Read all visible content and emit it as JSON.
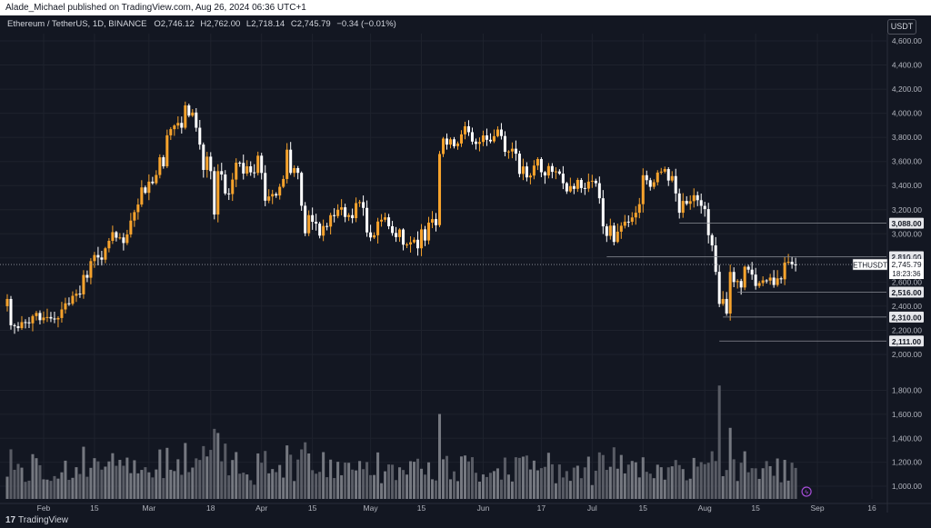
{
  "publisher_line": "Alade_Michael published on TradingView.com, Aug 26, 2024 06:36 UTC+1",
  "footer": {
    "logo": "17",
    "brand": "TradingView"
  },
  "symbol_line": {
    "symbol": "Ethereum / TetherUS, 1D, BINANCE",
    "open_label": "O",
    "open": "2,746.12",
    "high_label": "H",
    "high": "2,762.00",
    "low_label": "L",
    "low": "2,718.14",
    "close_label": "C",
    "close": "2,745.79",
    "change": "−0.34 (−0.01%)"
  },
  "currency": "USDT",
  "colors": {
    "up": "#f7a32c",
    "down": "#ffffff",
    "volume": "#6b6e78",
    "grid": "#1e222d",
    "axis_text": "#b2b5be",
    "price_line": "#9598a1",
    "background": "#131722"
  },
  "chart_data": {
    "type": "candlestick",
    "symbol": "ETHUSDT",
    "interval": "1D",
    "exchange": "BINANCE",
    "x_range": [
      "2024-01-22",
      "2024-09-20"
    ],
    "y_range": [
      2000,
      4600
    ],
    "x_ticks": [
      {
        "date": "2024-02-01",
        "label": "Feb"
      },
      {
        "date": "2024-02-15",
        "label": "15"
      },
      {
        "date": "2024-03-01",
        "label": "Mar"
      },
      {
        "date": "2024-03-18",
        "label": "18"
      },
      {
        "date": "2024-04-01",
        "label": "Apr"
      },
      {
        "date": "2024-04-15",
        "label": "15"
      },
      {
        "date": "2024-05-01",
        "label": "May"
      },
      {
        "date": "2024-05-15",
        "label": "15"
      },
      {
        "date": "2024-06-01",
        "label": "Jun"
      },
      {
        "date": "2024-06-17",
        "label": "17"
      },
      {
        "date": "2024-07-01",
        "label": "Jul"
      },
      {
        "date": "2024-07-15",
        "label": "15"
      },
      {
        "date": "2024-08-01",
        "label": "Aug"
      },
      {
        "date": "2024-08-15",
        "label": "15"
      },
      {
        "date": "2024-09-01",
        "label": "Sep"
      },
      {
        "date": "2024-09-16",
        "label": "16"
      }
    ],
    "price_ticks": [
      {
        "value": 2000,
        "label": "2,000.00"
      },
      {
        "value": 2200,
        "label": "2,200.00"
      },
      {
        "value": 2400,
        "label": "2,400.00"
      },
      {
        "value": 2600,
        "label": "2,600.00"
      },
      {
        "value": 2800,
        "label": "2,800.00"
      },
      {
        "value": 3000,
        "label": "3,000.00"
      },
      {
        "value": 3200,
        "label": "3,200.00"
      },
      {
        "value": 3400,
        "label": "3,400.00"
      },
      {
        "value": 3600,
        "label": "3,600.00"
      },
      {
        "value": 3800,
        "label": "3,800.00"
      },
      {
        "value": 4000,
        "label": "4,000.00"
      },
      {
        "value": 4200,
        "label": "4,200.00"
      },
      {
        "value": 4400,
        "label": "4,400.00"
      },
      {
        "value": 4600,
        "label": "4,600.00"
      }
    ],
    "volume_ticks": [
      {
        "value": 1000,
        "label": "1,000.00"
      },
      {
        "value": 1200,
        "label": "1,200.00"
      },
      {
        "value": 1400,
        "label": "1,400.00"
      },
      {
        "value": 1600,
        "label": "1,600.00"
      },
      {
        "value": 1800,
        "label": "1,800.00"
      }
    ],
    "levels": [
      {
        "price": 3088,
        "label": "3,088.00",
        "from": "2024-07-25"
      },
      {
        "price": 2810,
        "label": "2,810.00",
        "from": "2024-07-05"
      },
      {
        "price": 2516,
        "label": "2,516.00",
        "from": "2024-08-10"
      },
      {
        "price": 2310,
        "label": "2,310.00",
        "from": "2024-08-06"
      },
      {
        "price": 2111,
        "label": "2,111.00",
        "from": "2024-08-05"
      }
    ],
    "last_price": {
      "value": 2745.79,
      "symbol": "ETHUSDT",
      "price_label": "2,745.79",
      "countdown": "18:23:36"
    },
    "closes": [
      [
        "2024-01-22",
        2460
      ],
      [
        "2024-01-23",
        2242
      ],
      [
        "2024-01-24",
        2234
      ],
      [
        "2024-01-25",
        2218
      ],
      [
        "2024-01-26",
        2268
      ],
      [
        "2024-01-27",
        2266
      ],
      [
        "2024-01-28",
        2258
      ],
      [
        "2024-01-29",
        2318
      ],
      [
        "2024-01-30",
        2344
      ],
      [
        "2024-01-31",
        2284
      ],
      [
        "2024-02-01",
        2306
      ],
      [
        "2024-02-02",
        2310
      ],
      [
        "2024-02-03",
        2298
      ],
      [
        "2024-02-04",
        2290
      ],
      [
        "2024-02-05",
        2302
      ],
      [
        "2024-02-06",
        2373
      ],
      [
        "2024-02-07",
        2424
      ],
      [
        "2024-02-08",
        2420
      ],
      [
        "2024-02-09",
        2486
      ],
      [
        "2024-02-10",
        2504
      ],
      [
        "2024-02-11",
        2498
      ],
      [
        "2024-02-12",
        2659
      ],
      [
        "2024-02-13",
        2636
      ],
      [
        "2024-02-14",
        2774
      ],
      [
        "2024-02-15",
        2824
      ],
      [
        "2024-02-16",
        2804
      ],
      [
        "2024-02-17",
        2786
      ],
      [
        "2024-02-18",
        2880
      ],
      [
        "2024-02-19",
        2942
      ],
      [
        "2024-02-20",
        3014
      ],
      [
        "2024-02-21",
        2968
      ],
      [
        "2024-02-22",
        2970
      ],
      [
        "2024-02-23",
        2924
      ],
      [
        "2024-02-24",
        2995
      ],
      [
        "2024-02-25",
        3110
      ],
      [
        "2024-02-26",
        3180
      ],
      [
        "2024-02-27",
        3243
      ],
      [
        "2024-02-28",
        3385
      ],
      [
        "2024-02-29",
        3340
      ],
      [
        "2024-03-01",
        3433
      ],
      [
        "2024-03-02",
        3420
      ],
      [
        "2024-03-03",
        3488
      ],
      [
        "2024-03-04",
        3635
      ],
      [
        "2024-03-05",
        3560
      ],
      [
        "2024-03-06",
        3817
      ],
      [
        "2024-03-07",
        3868
      ],
      [
        "2024-03-08",
        3898
      ],
      [
        "2024-03-09",
        3920
      ],
      [
        "2024-03-10",
        3880
      ],
      [
        "2024-03-11",
        4065
      ],
      [
        "2024-03-12",
        3980
      ],
      [
        "2024-03-13",
        4006
      ],
      [
        "2024-03-14",
        3880
      ],
      [
        "2024-03-15",
        3740
      ],
      [
        "2024-03-16",
        3530
      ],
      [
        "2024-03-17",
        3640
      ],
      [
        "2024-03-18",
        3520
      ],
      [
        "2024-03-19",
        3160
      ],
      [
        "2024-03-20",
        3520
      ],
      [
        "2024-03-21",
        3492
      ],
      [
        "2024-03-22",
        3335
      ],
      [
        "2024-03-23",
        3330
      ],
      [
        "2024-03-24",
        3450
      ],
      [
        "2024-03-25",
        3590
      ],
      [
        "2024-03-26",
        3588
      ],
      [
        "2024-03-27",
        3500
      ],
      [
        "2024-03-28",
        3560
      ],
      [
        "2024-03-29",
        3510
      ],
      [
        "2024-03-30",
        3505
      ],
      [
        "2024-03-31",
        3648
      ],
      [
        "2024-04-01",
        3505
      ],
      [
        "2024-04-02",
        3275
      ],
      [
        "2024-04-03",
        3310
      ],
      [
        "2024-04-04",
        3330
      ],
      [
        "2024-04-05",
        3318
      ],
      [
        "2024-04-06",
        3390
      ],
      [
        "2024-04-07",
        3455
      ],
      [
        "2024-04-08",
        3698
      ],
      [
        "2024-04-09",
        3505
      ],
      [
        "2024-04-10",
        3545
      ],
      [
        "2024-04-11",
        3506
      ],
      [
        "2024-04-12",
        3233
      ],
      [
        "2024-04-13",
        3005
      ],
      [
        "2024-04-14",
        3155
      ],
      [
        "2024-04-15",
        3100
      ],
      [
        "2024-04-16",
        3085
      ],
      [
        "2024-04-17",
        2985
      ],
      [
        "2024-04-18",
        3065
      ],
      [
        "2024-04-19",
        3060
      ],
      [
        "2024-04-20",
        3155
      ],
      [
        "2024-04-21",
        3147
      ],
      [
        "2024-04-22",
        3200
      ],
      [
        "2024-04-23",
        3220
      ],
      [
        "2024-04-24",
        3140
      ],
      [
        "2024-04-25",
        3155
      ],
      [
        "2024-04-26",
        3130
      ],
      [
        "2024-04-27",
        3255
      ],
      [
        "2024-04-28",
        3263
      ],
      [
        "2024-04-29",
        3215
      ],
      [
        "2024-04-30",
        3012
      ],
      [
        "2024-05-01",
        2970
      ],
      [
        "2024-05-02",
        2988
      ],
      [
        "2024-05-03",
        3102
      ],
      [
        "2024-05-04",
        3117
      ],
      [
        "2024-05-05",
        3137
      ],
      [
        "2024-05-06",
        3063
      ],
      [
        "2024-05-07",
        3007
      ],
      [
        "2024-05-08",
        2973
      ],
      [
        "2024-05-09",
        3036
      ],
      [
        "2024-05-10",
        2910
      ],
      [
        "2024-05-11",
        2912
      ],
      [
        "2024-05-12",
        2930
      ],
      [
        "2024-05-13",
        2951
      ],
      [
        "2024-05-14",
        2880
      ],
      [
        "2024-05-15",
        3037
      ],
      [
        "2024-05-16",
        2945
      ],
      [
        "2024-05-17",
        3093
      ],
      [
        "2024-05-18",
        3122
      ],
      [
        "2024-05-19",
        3072
      ],
      [
        "2024-05-20",
        3662
      ],
      [
        "2024-05-21",
        3790
      ],
      [
        "2024-05-22",
        3740
      ],
      [
        "2024-05-23",
        3784
      ],
      [
        "2024-05-24",
        3727
      ],
      [
        "2024-05-25",
        3749
      ],
      [
        "2024-05-26",
        3825
      ],
      [
        "2024-05-27",
        3892
      ],
      [
        "2024-05-28",
        3843
      ],
      [
        "2024-05-29",
        3765
      ],
      [
        "2024-05-30",
        3746
      ],
      [
        "2024-05-31",
        3762
      ],
      [
        "2024-06-01",
        3816
      ],
      [
        "2024-06-02",
        3780
      ],
      [
        "2024-06-03",
        3767
      ],
      [
        "2024-06-04",
        3810
      ],
      [
        "2024-06-05",
        3865
      ],
      [
        "2024-06-06",
        3811
      ],
      [
        "2024-06-07",
        3680
      ],
      [
        "2024-06-08",
        3683
      ],
      [
        "2024-06-09",
        3706
      ],
      [
        "2024-06-10",
        3665
      ],
      [
        "2024-06-11",
        3497
      ],
      [
        "2024-06-12",
        3559
      ],
      [
        "2024-06-13",
        3468
      ],
      [
        "2024-06-14",
        3483
      ],
      [
        "2024-06-15",
        3566
      ],
      [
        "2024-06-16",
        3620
      ],
      [
        "2024-06-17",
        3511
      ],
      [
        "2024-06-18",
        3484
      ],
      [
        "2024-06-19",
        3562
      ],
      [
        "2024-06-20",
        3514
      ],
      [
        "2024-06-21",
        3518
      ],
      [
        "2024-06-22",
        3499
      ],
      [
        "2024-06-23",
        3420
      ],
      [
        "2024-06-24",
        3352
      ],
      [
        "2024-06-25",
        3396
      ],
      [
        "2024-06-26",
        3373
      ],
      [
        "2024-06-27",
        3447
      ],
      [
        "2024-06-28",
        3380
      ],
      [
        "2024-06-29",
        3375
      ],
      [
        "2024-06-30",
        3433
      ],
      [
        "2024-07-01",
        3440
      ],
      [
        "2024-07-02",
        3420
      ],
      [
        "2024-07-03",
        3295
      ],
      [
        "2024-07-04",
        3062
      ],
      [
        "2024-07-05",
        2983
      ],
      [
        "2024-07-06",
        3068
      ],
      [
        "2024-07-07",
        2933
      ],
      [
        "2024-07-08",
        3018
      ],
      [
        "2024-07-09",
        3067
      ],
      [
        "2024-07-10",
        3101
      ],
      [
        "2024-07-11",
        3100
      ],
      [
        "2024-07-12",
        3136
      ],
      [
        "2024-07-13",
        3175
      ],
      [
        "2024-07-14",
        3246
      ],
      [
        "2024-07-15",
        3486
      ],
      [
        "2024-07-16",
        3445
      ],
      [
        "2024-07-17",
        3390
      ],
      [
        "2024-07-18",
        3428
      ],
      [
        "2024-07-19",
        3508
      ],
      [
        "2024-07-20",
        3516
      ],
      [
        "2024-07-21",
        3537
      ],
      [
        "2024-07-22",
        3442
      ],
      [
        "2024-07-23",
        3479
      ],
      [
        "2024-07-24",
        3335
      ],
      [
        "2024-07-25",
        3175
      ],
      [
        "2024-07-26",
        3273
      ],
      [
        "2024-07-27",
        3249
      ],
      [
        "2024-07-28",
        3271
      ],
      [
        "2024-07-29",
        3320
      ],
      [
        "2024-07-30",
        3279
      ],
      [
        "2024-07-31",
        3232
      ],
      [
        "2024-08-01",
        3205
      ],
      [
        "2024-08-02",
        2989
      ],
      [
        "2024-08-03",
        2904
      ],
      [
        "2024-08-04",
        2685
      ],
      [
        "2024-08-05",
        2419
      ],
      [
        "2024-08-06",
        2460
      ],
      [
        "2024-08-07",
        2339
      ],
      [
        "2024-08-08",
        2684
      ],
      [
        "2024-08-09",
        2600
      ],
      [
        "2024-08-10",
        2609
      ],
      [
        "2024-08-11",
        2555
      ],
      [
        "2024-08-12",
        2727
      ],
      [
        "2024-08-13",
        2703
      ],
      [
        "2024-08-14",
        2662
      ],
      [
        "2024-08-15",
        2568
      ],
      [
        "2024-08-16",
        2592
      ],
      [
        "2024-08-17",
        2614
      ],
      [
        "2024-08-18",
        2612
      ],
      [
        "2024-08-19",
        2637
      ],
      [
        "2024-08-20",
        2576
      ],
      [
        "2024-08-21",
        2631
      ],
      [
        "2024-08-22",
        2623
      ],
      [
        "2024-08-23",
        2762
      ],
      [
        "2024-08-24",
        2768
      ],
      [
        "2024-08-25",
        2746
      ],
      [
        "2024-08-26",
        2745.79
      ]
    ],
    "volume_spike": {
      "date": "2024-08-05",
      "value": 1840
    }
  }
}
